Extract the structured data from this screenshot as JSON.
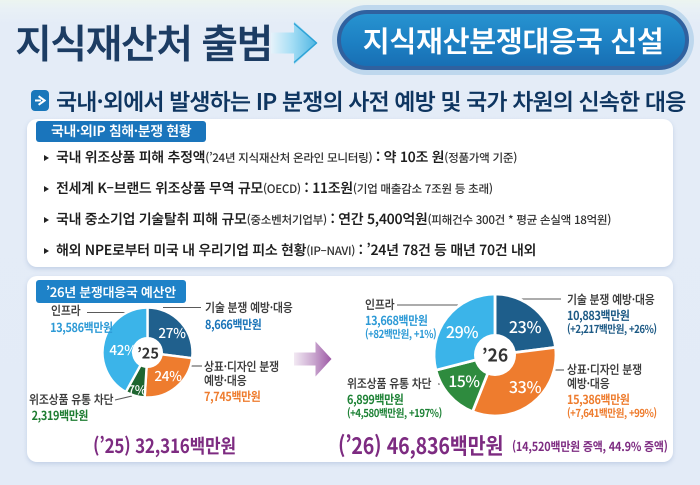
{
  "header": {
    "title": "지식재산처 출범",
    "badge": "지식재산분쟁대응국 신설",
    "subtitle": "국내·외에서 발생하는 IP 분쟁의 사전 예방 및 국가 차원의 신속한 대응"
  },
  "status_box": {
    "tab": "국내·외IP 침해·분쟁 현황",
    "items": [
      {
        "label": "국내 위조상품 피해 추정액",
        "label_note": "(’24년 지식재산처 온라인 모니터링)",
        "sep": " : ",
        "value": "약 10조 원",
        "value_note": "(정품가액 기준)"
      },
      {
        "label": "전세계 K–브랜드 위조상품 무역 규모",
        "label_note": "(OECD)",
        "sep": " : ",
        "value": "11조원",
        "value_note": "(기업 매출감소 7조원 등 초래)"
      },
      {
        "label": "국내 중소기업 기술탈취 피해 규모",
        "label_note": "(중소벤처기업부)",
        "sep": " : ",
        "value": "연간 5,400억원",
        "value_note": "(피해건수 300건 * 평균 손실액 18억원)"
      },
      {
        "label": "해외 NPE로부터 미국 내 우리기업 피소 현황",
        "label_note": "(IP–NAVI)",
        "sep": " : ",
        "value": "’24년 78건 등 매년 70건 내외",
        "value_note": ""
      }
    ]
  },
  "budget_box": {
    "tab": "’26년 분쟁대응국 예산안"
  },
  "chart_data": [
    {
      "type": "pie",
      "title": "’26년 분쟁대응국 예산안",
      "year": "’25",
      "center_label": "’25",
      "total_label": "(’25) 32,316백만원",
      "total_value_mkrw": 32316,
      "unit": "백만원",
      "slices": [
        {
          "name": "기술 분쟁 예방·대응",
          "value": 8666,
          "value_label": "8,666백만원",
          "pct": 27,
          "pct_label": "27%",
          "color": "#20608d"
        },
        {
          "name": "상표·디자인 분쟁 예방·대응",
          "value": 7745,
          "value_label": "7,745백만원",
          "pct": 24,
          "pct_label": "24%",
          "color": "#ee7c2e"
        },
        {
          "name": "위조상품 유통 차단",
          "value": 2319,
          "value_label": "2,319백만원",
          "pct": 7,
          "pct_label": "7%",
          "color": "#1e6530"
        },
        {
          "name": "인프라",
          "value": 13586,
          "value_label": "13,586백만원",
          "pct": 42,
          "pct_label": "42%",
          "color": "#3bb4e9"
        }
      ]
    },
    {
      "type": "pie",
      "year": "’26",
      "center_label": "’26",
      "total_label": "(’26) 46,836백만원",
      "total_note": "(14,520백만원 증액, 44.9% 증액)",
      "total_value_mkrw": 46836,
      "unit": "백만원",
      "slices": [
        {
          "name": "기술 분쟁 예방·대응",
          "value": 10883,
          "value_label": "10,883백만원",
          "delta": "(+2,217백만원, +26%)",
          "pct": 23,
          "pct_label": "23%",
          "color": "#1e5e8b"
        },
        {
          "name": "상표·디자인 분쟁 예방·대응",
          "value": 15386,
          "value_label": "15,386백만원",
          "delta": "(+7,641백만원, +99%)",
          "pct": 33,
          "pct_label": "33%",
          "color": "#ee7c2e"
        },
        {
          "name": "위조상품 유통 차단",
          "value": 6899,
          "value_label": "6,899백만원",
          "delta": "(+4,580백만원, +197%)",
          "pct": 15,
          "pct_label": "15%",
          "color": "#2e8b3e"
        },
        {
          "name": "인프라",
          "value": 13668,
          "value_label": "13,668백만원",
          "delta": "(+82백만원, +1%)",
          "pct": 29,
          "pct_label": "29%",
          "color": "#3bb4e9"
        }
      ]
    }
  ],
  "colors": {
    "background": "#e4ecf7",
    "title_navy": "#1c3c63",
    "badge_fill": "#1d80c3",
    "badge_border": "#30619f",
    "tab_blue": "#1a75bc",
    "tab2_blue": "#1e82c8",
    "purple_total": "#7d2b81",
    "value_blue": "#1a74b8",
    "value_sky": "#2d9ad6",
    "value_navy": "#1d5a85",
    "value_orange": "#ee7c2e",
    "value_green_25": "#1e7c31",
    "value_green_26": "#1e8236"
  }
}
